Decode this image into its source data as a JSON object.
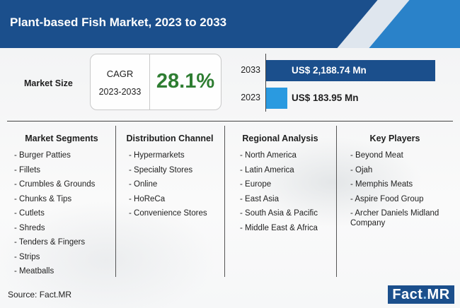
{
  "header": {
    "title": "Plant-based Fish Market, 2023 to 2033"
  },
  "market_size": {
    "label": "Market Size",
    "cagr_label": "CAGR",
    "cagr_period": "2023-2033",
    "cagr_value": "28.1%"
  },
  "chart_data": {
    "type": "bar",
    "orientation": "horizontal",
    "categories": [
      "2033",
      "2023"
    ],
    "values": [
      2188.74,
      183.95
    ],
    "value_labels": [
      "US$ 2,188.74 Mn",
      "US$ 183.95 Mn"
    ],
    "colors": [
      "#1b4f8c",
      "#2a9ae0"
    ],
    "unit": "US$ Mn",
    "title": "",
    "xlabel": "",
    "ylabel": ""
  },
  "columns": [
    {
      "title": "Market Segments",
      "items": [
        "- Burger Patties",
        "- Fillets",
        "- Crumbles & Grounds",
        "- Chunks & Tips",
        "- Cutlets",
        "- Shreds",
        "- Tenders & Fingers",
        "- Strips",
        "- Meatballs"
      ]
    },
    {
      "title": "Distribution Channel",
      "items": [
        "- Hypermarkets",
        "- Specialty Stores",
        "- Online",
        "- HoReCa",
        "- Convenience Stores"
      ]
    },
    {
      "title": "Regional Analysis",
      "items": [
        "- North America",
        "- Latin America",
        "- Europe",
        "- East Asia",
        "- South Asia & Pacific",
        "- Middle East & Africa"
      ]
    },
    {
      "title": "Key Players",
      "items": [
        "- Beyond Meat",
        "- Ojah",
        "- Memphis Meats",
        "- Aspire Food Group",
        "- Archer Daniels Midland Company"
      ]
    }
  ],
  "footer": {
    "source": "Source: Fact.MR",
    "logo_part1": "Fact",
    "logo_dot": ".",
    "logo_part2": "MR"
  }
}
